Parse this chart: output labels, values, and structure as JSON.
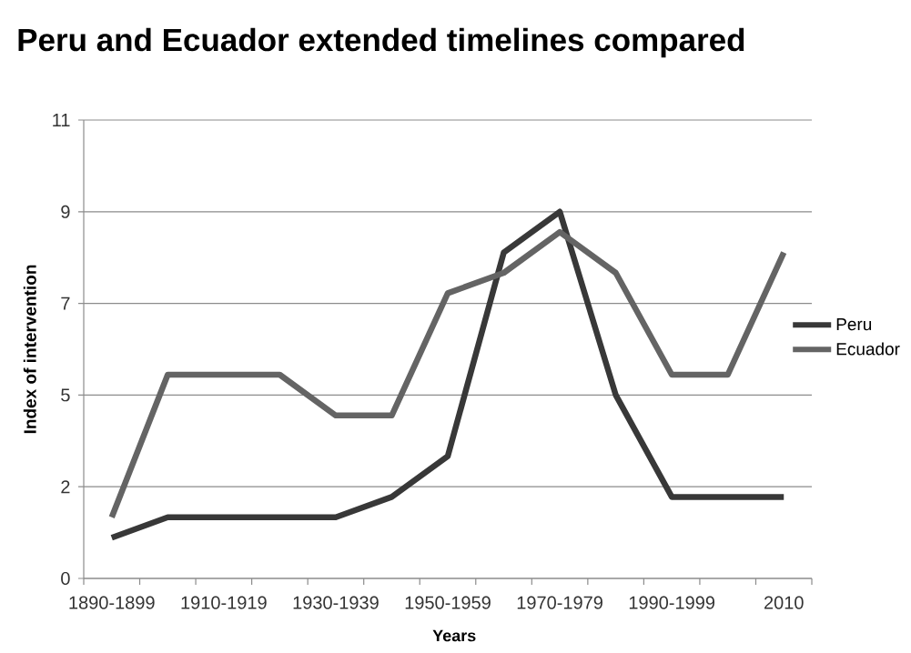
{
  "chart_data": {
    "type": "line",
    "title": "Peru and Ecuador extended timelines compared",
    "xlabel": "Years",
    "ylabel": "Index of intervention",
    "categories": [
      "1890-1899",
      null,
      "1910-1919",
      null,
      "1930-1939",
      null,
      "1950-1959",
      null,
      "1970-1979",
      null,
      "1990-1999",
      null,
      "2010"
    ],
    "series": [
      {
        "name": "Peru",
        "color": "#383838",
        "values": [
          1,
          1.5,
          1.5,
          1.5,
          1.5,
          2,
          3,
          8,
          9,
          4.5,
          2,
          2,
          2
        ]
      },
      {
        "name": "Ecuador",
        "color": "#646464",
        "values": [
          1.5,
          5,
          5,
          5,
          4,
          4,
          7,
          7.5,
          8.5,
          7.5,
          5,
          5,
          8
        ]
      }
    ],
    "ylim": [
      0,
      11.25
    ],
    "yticks": [
      0,
      {
        "value": 2.25,
        "label": "2"
      },
      {
        "value": 4.5,
        "label": "5"
      },
      {
        "value": 6.75,
        "label": "7"
      },
      9,
      {
        "value": 11.25,
        "label": "11"
      }
    ],
    "grid": "y",
    "legend": "right"
  }
}
